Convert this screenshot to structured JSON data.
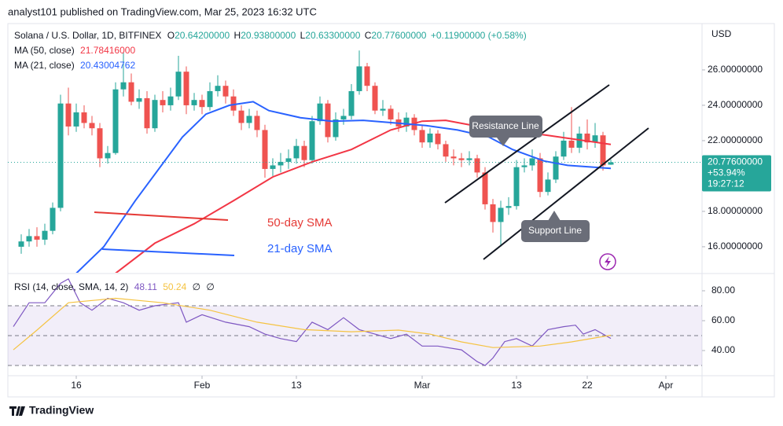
{
  "header": {
    "published": "analyst101 published on TradingView.com, Mar 25, 2023 16:32 UTC"
  },
  "footer": {
    "brand": "TradingView"
  },
  "chart_data": [
    {
      "type": "candlestick",
      "title": "Solana / U.S. Dollar, 1D, BITFINEX",
      "ohlc": [
        {
          "key": "O",
          "value": "20.64200000"
        },
        {
          "key": "H",
          "value": "20.93800000"
        },
        {
          "key": "L",
          "value": "20.63300000"
        },
        {
          "key": "C",
          "value": "20.77600000"
        }
      ],
      "change": "+0.11900000 (+0.58%)",
      "currency": "USD",
      "up_color": "#26a69a",
      "down_color": "#ef5350",
      "x": [
        9,
        10,
        11,
        12,
        13,
        14,
        15,
        16,
        17,
        18,
        19,
        20,
        21,
        22,
        23,
        24,
        25,
        26,
        27,
        28,
        29,
        30,
        31,
        32,
        33,
        34,
        35,
        36,
        37,
        38,
        39,
        40,
        41,
        42,
        43,
        44,
        45,
        46,
        47,
        48,
        49,
        50,
        51,
        52,
        53,
        54,
        55,
        56,
        57,
        58,
        59,
        60,
        61,
        62,
        63,
        64,
        65,
        66,
        67,
        68,
        69,
        70,
        71,
        72,
        73,
        74,
        75,
        76,
        77,
        78,
        79,
        80,
        81,
        82,
        83,
        84
      ],
      "open": [
        16.0,
        16.3,
        16.6,
        16.4,
        16.9,
        18.2,
        24.1,
        22.8,
        23.6,
        23.0,
        22.7,
        21.0,
        21.3,
        24.9,
        25.3,
        24.2,
        24.4,
        22.7,
        24.3,
        24.0,
        24.5,
        25.9,
        24.0,
        24.3,
        23.9,
        24.8,
        25.1,
        24.5,
        23.7,
        23.0,
        23.4,
        22.6,
        20.4,
        20.6,
        20.8,
        21.0,
        21.7,
        20.9,
        23.1,
        24.1,
        22.2,
        23.2,
        23.4,
        24.8,
        26.2,
        25.1,
        23.7,
        23.8,
        23.2,
        22.8,
        23.3,
        22.6,
        21.9,
        22.4,
        21.8,
        21.1,
        21.0,
        20.9,
        21.0,
        20.2,
        18.4,
        17.4,
        18.2,
        18.3,
        20.5,
        20.6,
        21.0,
        19.1,
        19.8,
        21.1,
        22.0,
        21.6,
        22.4,
        21.9,
        22.3,
        20.642
      ],
      "high": [
        16.7,
        17.0,
        17.1,
        17.3,
        18.5,
        24.6,
        25.0,
        24.1,
        24.0,
        23.4,
        23.0,
        21.7,
        25.3,
        27.0,
        25.8,
        24.9,
        24.8,
        24.6,
        24.8,
        25.0,
        26.8,
        26.2,
        24.7,
        24.6,
        25.3,
        25.7,
        25.4,
        24.9,
        24.0,
        23.8,
        23.7,
        22.9,
        21.0,
        21.3,
        21.5,
        22.1,
        22.0,
        23.4,
        24.5,
        24.3,
        23.6,
        23.8,
        25.2,
        27.1,
        26.4,
        25.3,
        24.3,
        24.0,
        23.6,
        23.6,
        23.5,
        22.9,
        22.7,
        22.6,
        22.0,
        21.5,
        21.3,
        21.4,
        21.2,
        20.5,
        18.7,
        18.6,
        18.8,
        20.9,
        21.0,
        21.5,
        21.3,
        20.2,
        21.4,
        22.5,
        23.9,
        22.8,
        23.2,
        23.0,
        22.5,
        20.938
      ],
      "low": [
        15.6,
        16.0,
        16.0,
        16.1,
        16.7,
        18.0,
        22.3,
        22.5,
        22.7,
        22.3,
        20.5,
        20.7,
        21.2,
        24.5,
        24.0,
        23.8,
        22.4,
        22.5,
        23.6,
        23.7,
        24.3,
        23.5,
        23.7,
        23.5,
        23.7,
        24.5,
        24.1,
        23.4,
        22.6,
        22.7,
        22.2,
        19.9,
        20.0,
        20.2,
        20.4,
        20.7,
        20.5,
        20.7,
        22.9,
        21.9,
        22.0,
        22.9,
        23.2,
        24.6,
        24.8,
        23.5,
        23.4,
        22.9,
        22.5,
        22.5,
        22.3,
        21.6,
        21.6,
        21.5,
        20.8,
        20.6,
        20.5,
        20.6,
        19.9,
        18.1,
        16.8,
        16.0,
        17.8,
        18.1,
        20.2,
        20.3,
        18.8,
        18.9,
        19.6,
        20.9,
        21.3,
        21.3,
        21.5,
        21.6,
        20.3,
        20.633
      ],
      "close": [
        16.3,
        16.6,
        16.4,
        16.9,
        18.2,
        24.1,
        22.8,
        23.6,
        23.0,
        22.7,
        21.0,
        21.3,
        24.9,
        25.3,
        24.2,
        24.4,
        22.7,
        24.3,
        24.0,
        24.5,
        25.9,
        24.0,
        24.3,
        23.9,
        24.8,
        25.1,
        24.5,
        23.7,
        23.0,
        23.4,
        22.6,
        20.4,
        20.6,
        20.8,
        21.0,
        21.7,
        20.9,
        23.1,
        24.1,
        22.2,
        23.2,
        23.4,
        24.8,
        26.2,
        25.1,
        23.7,
        23.8,
        23.2,
        22.8,
        23.3,
        22.6,
        21.9,
        22.4,
        21.8,
        21.1,
        21.0,
        20.9,
        21.0,
        20.2,
        18.4,
        17.4,
        18.2,
        18.3,
        20.5,
        20.6,
        21.0,
        19.1,
        19.8,
        21.1,
        22.0,
        21.6,
        22.4,
        21.9,
        22.3,
        20.6,
        20.776
      ],
      "series": [
        {
          "name": "MA (50, close)",
          "legend_value": "21.78416000",
          "color": "#f23645",
          "x": [
            21,
            26,
            31,
            36,
            41,
            46,
            51,
            56,
            60,
            63,
            66,
            71,
            76,
            84
          ],
          "values": [
            14.5,
            16.2,
            17.3,
            18.6,
            19.95,
            20.8,
            21.5,
            22.6,
            23.1,
            23.15,
            22.9,
            22.6,
            22.3,
            21.784
          ]
        },
        {
          "name": "MA (21, close)",
          "legend_value": "20.43004762",
          "color": "#2962ff",
          "x": [
            16,
            19.5,
            23.5,
            29.5,
            32.5,
            35.5,
            38.5,
            40.5,
            44.5,
            48.5,
            52.5,
            56.5,
            60.5,
            64.5,
            68.5,
            71.5,
            75.5,
            78.5,
            84
          ],
          "values": [
            14.5,
            16.0,
            18.6,
            22.2,
            23.5,
            24.0,
            24.2,
            23.7,
            23.3,
            23.1,
            23.15,
            23.0,
            22.85,
            22.6,
            22.2,
            21.5,
            20.85,
            20.6,
            20.43
          ]
        }
      ],
      "last_price": {
        "value": 20.776,
        "label": "20.77600000"
      },
      "change_badge": "+53.94%",
      "countdown": "19:27:12",
      "annotations": [
        "Resistance Line",
        "Support Line",
        "50-day SMA",
        "21-day SMA"
      ],
      "xlim": [
        7.3,
        95.6
      ],
      "xticks": [
        {
          "value": 16,
          "label": "16"
        },
        {
          "value": 32,
          "label": "Feb"
        },
        {
          "value": 44,
          "label": "13"
        },
        {
          "value": 60,
          "label": "Mar"
        },
        {
          "value": 72,
          "label": "13"
        },
        {
          "value": 81,
          "label": "22"
        },
        {
          "value": 91,
          "label": "Apr"
        }
      ],
      "ylim": [
        14.53,
        28.62
      ],
      "yticks": [
        {
          "value": 16,
          "label": "16.00000000"
        },
        {
          "value": 18,
          "label": "18.00000000"
        },
        {
          "value": 22,
          "label": "22.00000000"
        },
        {
          "value": 24,
          "label": "24.00000000"
        },
        {
          "value": 26,
          "label": "26.00000000"
        }
      ]
    },
    {
      "type": "line",
      "title": "RSI (14, close, SMA, 14, 2)",
      "legend_extra": [
        "∅",
        "∅"
      ],
      "series": [
        {
          "legend_value": "48.11",
          "color": "#7e57c2",
          "x": [
            8,
            10,
            12,
            14,
            15,
            16.5,
            18,
            20,
            22,
            24,
            26,
            29,
            30,
            32,
            35,
            38,
            40,
            42,
            44,
            46,
            48,
            50,
            52,
            54,
            56,
            58,
            60,
            62,
            65,
            67,
            68,
            69,
            70.5,
            72,
            74,
            76,
            78,
            79.5,
            80.5,
            82,
            84
          ],
          "values": [
            56,
            72,
            72,
            85,
            88,
            72,
            67,
            75,
            72,
            67,
            70,
            72,
            59,
            64,
            59,
            56,
            51,
            48,
            46,
            59,
            54,
            62,
            54,
            51,
            48,
            51,
            43,
            43,
            40.5,
            32.6,
            30,
            35,
            46,
            48,
            43,
            54,
            56,
            57,
            51,
            54,
            48.11
          ]
        },
        {
          "legend_value": "50.24",
          "color": "#f5c342",
          "x": [
            8,
            11,
            15,
            21,
            27,
            33,
            39,
            45,
            51,
            57,
            61,
            65,
            69,
            75,
            79,
            84
          ],
          "values": [
            40.5,
            53.7,
            72,
            75,
            72,
            67,
            59,
            54,
            52.6,
            53.7,
            51,
            45.8,
            42,
            43,
            45.8,
            50.24
          ]
        }
      ],
      "band": [
        30,
        70
      ],
      "levels": [
        70,
        50,
        30
      ],
      "ylim": [
        23.7,
        90.5
      ],
      "yticks": [
        {
          "value": 80,
          "label": "80.00"
        },
        {
          "value": 60,
          "label": "60.00"
        },
        {
          "value": 40,
          "label": "40.00"
        }
      ]
    }
  ]
}
